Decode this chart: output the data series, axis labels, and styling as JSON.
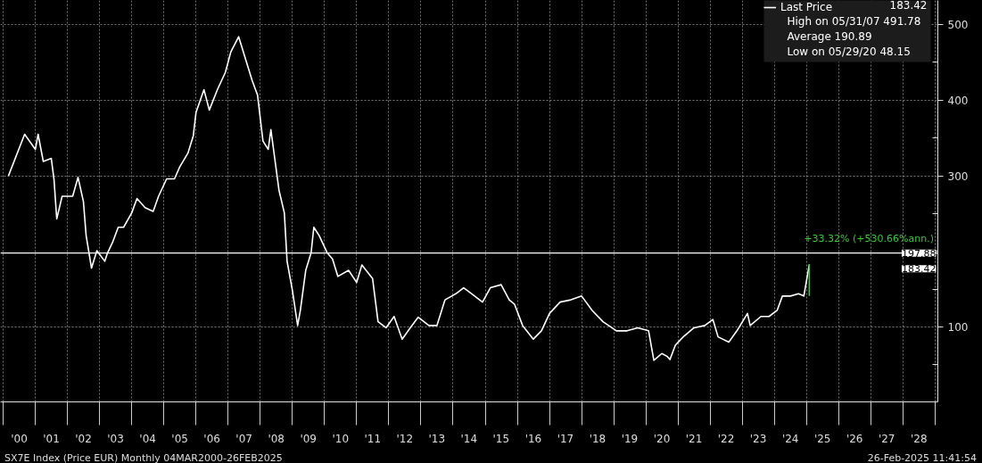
{
  "chart_data": {
    "type": "line",
    "title": null,
    "x": [
      "2000-03",
      "2000-09",
      "2001-01",
      "2001-02",
      "2001-04",
      "2001-07",
      "2001-08",
      "2001-09",
      "2001-11",
      "2002-03",
      "2002-05",
      "2002-07",
      "2002-08",
      "2002-10",
      "2002-12",
      "2003-03",
      "2003-04",
      "2003-06",
      "2003-08",
      "2003-10",
      "2004-01",
      "2004-03",
      "2004-06",
      "2004-09",
      "2004-11",
      "2005-02",
      "2005-05",
      "2005-07",
      "2005-10",
      "2005-12",
      "2006-01",
      "2006-04",
      "2006-06",
      "2006-09",
      "2006-12",
      "2007-02",
      "2007-05",
      "2007-08",
      "2007-10",
      "2007-12",
      "2008-02",
      "2008-04",
      "2008-05",
      "2008-08",
      "2008-10",
      "2008-11",
      "2009-01",
      "2009-03",
      "2009-04",
      "2009-06",
      "2009-08",
      "2009-09",
      "2009-11",
      "2010-02",
      "2010-04",
      "2010-06",
      "2010-10",
      "2011-01",
      "2011-03",
      "2011-07",
      "2011-09",
      "2011-12",
      "2012-03",
      "2012-06",
      "2012-09",
      "2012-12",
      "2013-04",
      "2013-07",
      "2013-10",
      "2014-02",
      "2014-05",
      "2014-08",
      "2014-12",
      "2015-03",
      "2015-07",
      "2015-10",
      "2015-12",
      "2016-03",
      "2016-07",
      "2016-10",
      "2017-01",
      "2017-05",
      "2017-09",
      "2018-01",
      "2018-05",
      "2018-09",
      "2019-02",
      "2019-06",
      "2019-10",
      "2020-02",
      "2020-04",
      "2020-07",
      "2020-09",
      "2020-10",
      "2020-12",
      "2021-03",
      "2021-07",
      "2021-11",
      "2022-02",
      "2022-04",
      "2022-08",
      "2022-11",
      "2023-03",
      "2023-04",
      "2023-08",
      "2023-11",
      "2024-02",
      "2024-04",
      "2024-07",
      "2024-10",
      "2024-12",
      "2025-02"
    ],
    "series": [
      {
        "name": "Last Price",
        "color": "#ffffff",
        "values": [
          300,
          355,
          335,
          355,
          319,
          323,
          295,
          243,
          273,
          273,
          298,
          266,
          221,
          178,
          201,
          187,
          198,
          213,
          232,
          232,
          251,
          270,
          258,
          253,
          273,
          296,
          296,
          312,
          330,
          353,
          384,
          414,
          387,
          414,
          437,
          464,
          484,
          449,
          426,
          407,
          346,
          335,
          361,
          281,
          251,
          187,
          148,
          102,
          122,
          175,
          198,
          232,
          221,
          198,
          190,
          167,
          175,
          159,
          182,
          164,
          107,
          99,
          114,
          84,
          99,
          113,
          102,
          102,
          136,
          144,
          152,
          144,
          133,
          152,
          156,
          136,
          130,
          102,
          84,
          95,
          118,
          133,
          136,
          141,
          122,
          107,
          95,
          95,
          99,
          95,
          56,
          65,
          61,
          57,
          76,
          87,
          99,
          102,
          110,
          87,
          80,
          95,
          118,
          102,
          114,
          114,
          122,
          141,
          141,
          144,
          141,
          183
        ]
      },
      {
        "type": "line",
        "color": "#33cc33",
        "x": [
          "2025-02",
          "2025-02"
        ],
        "values": [
          141,
          183
        ]
      }
    ],
    "xlim": [
      "1999-12-01",
      "2029-02-01"
    ],
    "xticks": [
      {
        "value": "2000-01-01",
        "label": null
      },
      {
        "value": "2000-07-01",
        "label": "'00"
      },
      {
        "value": "2001-01-01",
        "label": null
      },
      {
        "value": "2001-07-01",
        "label": "'01"
      },
      {
        "value": "2002-01-01",
        "label": null
      },
      {
        "value": "2002-07-01",
        "label": "'02"
      },
      {
        "value": "2003-01-01",
        "label": null
      },
      {
        "value": "2003-07-01",
        "label": "'03"
      },
      {
        "value": "2004-01-01",
        "label": null
      },
      {
        "value": "2004-07-01",
        "label": "'04"
      },
      {
        "value": "2005-01-01",
        "label": null
      },
      {
        "value": "2005-07-01",
        "label": "'05"
      },
      {
        "value": "2006-01-01",
        "label": null
      },
      {
        "value": "2006-07-01",
        "label": "'06"
      },
      {
        "value": "2007-01-01",
        "label": null
      },
      {
        "value": "2007-07-01",
        "label": "'07"
      },
      {
        "value": "2008-01-01",
        "label": null
      },
      {
        "value": "2008-07-01",
        "label": "'08"
      },
      {
        "value": "2009-01-01",
        "label": null
      },
      {
        "value": "2009-07-01",
        "label": "'09"
      },
      {
        "value": "2010-01-01",
        "label": null
      },
      {
        "value": "2010-07-01",
        "label": "'10"
      },
      {
        "value": "2011-01-01",
        "label": null
      },
      {
        "value": "2011-07-01",
        "label": "'11"
      },
      {
        "value": "2012-01-01",
        "label": null
      },
      {
        "value": "2012-07-01",
        "label": "'12"
      },
      {
        "value": "2013-01-01",
        "label": null
      },
      {
        "value": "2013-07-01",
        "label": "'13"
      },
      {
        "value": "2014-01-01",
        "label": null
      },
      {
        "value": "2014-07-01",
        "label": "'14"
      },
      {
        "value": "2015-01-01",
        "label": null
      },
      {
        "value": "2015-07-01",
        "label": "'15"
      },
      {
        "value": "2016-01-01",
        "label": null
      },
      {
        "value": "2016-07-01",
        "label": "'16"
      },
      {
        "value": "2017-01-01",
        "label": null
      },
      {
        "value": "2017-07-01",
        "label": "'17"
      },
      {
        "value": "2018-01-01",
        "label": null
      },
      {
        "value": "2018-07-01",
        "label": "'18"
      },
      {
        "value": "2019-01-01",
        "label": null
      },
      {
        "value": "2019-07-01",
        "label": "'19"
      },
      {
        "value": "2020-01-01",
        "label": null
      },
      {
        "value": "2020-07-01",
        "label": "'20"
      },
      {
        "value": "2021-01-01",
        "label": null
      },
      {
        "value": "2021-07-01",
        "label": "'21"
      },
      {
        "value": "2022-01-01",
        "label": null
      },
      {
        "value": "2022-07-01",
        "label": "'22"
      },
      {
        "value": "2023-01-01",
        "label": null
      },
      {
        "value": "2023-07-01",
        "label": "'23"
      },
      {
        "value": "2024-01-01",
        "label": null
      },
      {
        "value": "2024-07-01",
        "label": "'24"
      },
      {
        "value": "2025-01-01",
        "label": null
      },
      {
        "value": "2025-07-01",
        "label": "'25"
      },
      {
        "value": "2026-01-01",
        "label": null
      },
      {
        "value": "2026-07-01",
        "label": "'26"
      },
      {
        "value": "2027-01-01",
        "label": null
      },
      {
        "value": "2027-07-01",
        "label": "'27"
      },
      {
        "value": "2028-01-01",
        "label": null
      },
      {
        "value": "2028-07-01",
        "label": "'28"
      },
      {
        "value": "2029-01-01",
        "label": null
      }
    ],
    "ylim": [
      1,
      532
    ],
    "yticks": [
      {
        "value": 50,
        "label": null
      },
      100,
      {
        "value": 150,
        "label": null
      },
      {
        "value": 200,
        "label": null
      },
      {
        "value": 250,
        "label": null
      },
      300,
      {
        "value": 350,
        "label": null
      },
      400,
      {
        "value": 450,
        "label": null
      },
      500
    ],
    "grid": true,
    "legend": "top right",
    "marker": "none",
    "line_style": "solid",
    "ref_lines": [
      {
        "axis": "y",
        "value": 197.88,
        "label": "197.88",
        "color": "#ffffff"
      }
    ],
    "annotations": [
      "SX7E Index (Price EUR)  Monthly 04MAR2000-26FEB2025",
      "26-Feb-2025 11:41:54",
      "183.42",
      "High on 05/31/07 491.78",
      "Average 190.89",
      "Low on 05/29/20 48.15",
      {
        "text": "+33.32% (+530.66%ann.)",
        "x": "2025-02",
        "y": 183.42
      },
      "183.42"
    ]
  }
}
